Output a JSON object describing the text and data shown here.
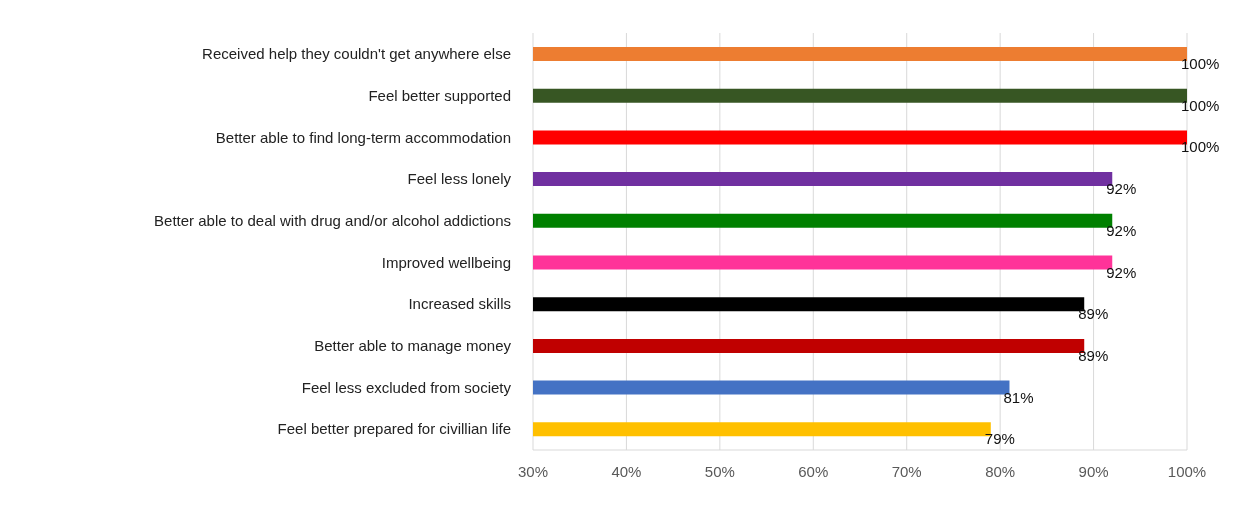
{
  "chart_data": {
    "type": "bar",
    "orientation": "horizontal",
    "categories": [
      "Received help they couldn't get anywhere else",
      "Feel better supported",
      "Better able to find long-term accommodation",
      "Feel less lonely",
      "Better able to deal with drug and/or alcohol addictions",
      "Improved wellbeing",
      "Increased skills",
      "Better able to manage money",
      "Feel less excluded from society",
      "Feel better prepared for civillian life"
    ],
    "values": [
      100,
      100,
      100,
      92,
      92,
      92,
      89,
      89,
      81,
      79
    ],
    "colors": [
      "#ed7d31",
      "#375623",
      "#ff0000",
      "#7030a0",
      "#008000",
      "#ff3399",
      "#000000",
      "#c00000",
      "#4472c4",
      "#ffc000"
    ],
    "value_labels": [
      "100%",
      "100%",
      "100%",
      "92%",
      "92%",
      "92%",
      "89%",
      "89%",
      "81%",
      "79%"
    ],
    "xlim": [
      30,
      100
    ],
    "xticks": [
      {
        "value": 30,
        "label": "30%"
      },
      {
        "value": 40,
        "label": "40%"
      },
      {
        "value": 50,
        "label": "50%"
      },
      {
        "value": 60,
        "label": "60%"
      },
      {
        "value": 70,
        "label": "70%"
      },
      {
        "value": 80,
        "label": "80%"
      },
      {
        "value": 90,
        "label": "90%"
      },
      {
        "value": 100,
        "label": "100%"
      }
    ],
    "grid": "x"
  }
}
